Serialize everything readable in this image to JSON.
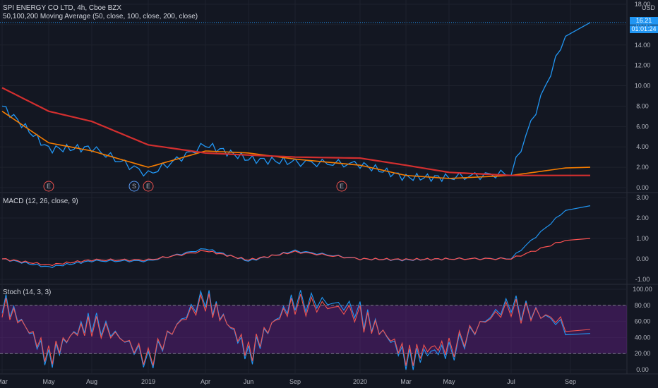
{
  "symbol_title": "SPI ENERGY CO LTD, 4h, Cboe BZX",
  "ma_legend": "50,100,200 Moving Average (50, close, 100, close, 200, close)",
  "macd_legend": "MACD (12, 26, close, 9)",
  "stoch_legend": "Stoch (14, 3, 3)",
  "currency": "USD",
  "last_price": "16.21",
  "countdown": "01:01:24",
  "colors": {
    "background": "#131722",
    "price": "#2196f3",
    "ma_slow": "#d32f2f",
    "ma_mid": "#f57c00",
    "macd_signal": "#ff5252",
    "stoch_k": "#2196f3",
    "stoch_d": "#ef5350",
    "stoch_band": "#7b1fa2",
    "price_tag": "#2196f3"
  },
  "x_axis_labels": [
    "Mar",
    "May",
    "Aug",
    "2019",
    "Apr",
    "Jun",
    "Sep",
    "2020",
    "Mar",
    "May",
    "Jul",
    "Sep"
  ],
  "earnings_markers": [
    "E",
    "S",
    "E",
    "E"
  ],
  "chart_data": [
    {
      "type": "line",
      "panel": "price",
      "y_ticks": [
        "18.00",
        "16.00",
        "14.00",
        "12.00",
        "10.00",
        "8.00",
        "6.00",
        "4.00",
        "2.00",
        "0.00"
      ],
      "ylim": [
        0,
        18
      ],
      "x": [
        "Mar",
        "May",
        "Aug",
        "2019",
        "Apr",
        "Jun",
        "Sep",
        "2020",
        "Mar",
        "May",
        "Jul",
        "Sep"
      ],
      "series": [
        {
          "values": [
            8.0,
            3.8,
            3.9,
            1.3,
            4.2,
            2.8,
            2.5,
            2.3,
            1.0,
            1.0,
            1.4,
            16.21
          ]
        },
        {
          "values": [
            7.5,
            4.4,
            3.6,
            2.0,
            3.6,
            3.4,
            2.8,
            2.2,
            1.2,
            0.9,
            1.2,
            2.0
          ]
        },
        {
          "values": [
            9.8,
            7.5,
            6.5,
            4.2,
            3.4,
            3.2,
            3.0,
            2.9,
            2.2,
            1.5,
            1.2,
            1.2
          ]
        }
      ]
    },
    {
      "type": "line",
      "panel": "macd",
      "y_ticks": [
        "3.00",
        "2.00",
        "1.00",
        "0.00",
        "-1.00"
      ],
      "ylim": [
        -1,
        3
      ],
      "x": [
        "Mar",
        "May",
        "Aug",
        "2019",
        "Apr",
        "Jun",
        "Sep",
        "2020",
        "Mar",
        "May",
        "Jul",
        "Sep"
      ],
      "series": [
        {
          "values": [
            0.0,
            -0.4,
            -0.1,
            -0.1,
            0.5,
            -0.1,
            0.4,
            0.0,
            -0.05,
            0.0,
            0.02,
            2.6
          ]
        },
        {
          "values": [
            0.0,
            -0.3,
            -0.05,
            -0.05,
            0.4,
            -0.05,
            0.35,
            0.0,
            -0.03,
            0.0,
            0.01,
            1.0
          ]
        }
      ]
    },
    {
      "type": "line",
      "panel": "stoch",
      "y_ticks": [
        "100.00",
        "80.00",
        "60.00",
        "40.00",
        "20.00",
        "0.00"
      ],
      "ylim": [
        0,
        100
      ],
      "bands": [
        20,
        80
      ],
      "x": [
        "Mar",
        "May",
        "Aug",
        "2019",
        "Apr",
        "Jun",
        "Sep",
        "2020",
        "Mar",
        "May",
        "Jul",
        "Sep"
      ],
      "series": [
        {
          "values": [
            85,
            10,
            60,
            8,
            90,
            15,
            85,
            70,
            10,
            20,
            80,
            45
          ]
        },
        {
          "values": [
            80,
            15,
            55,
            12,
            85,
            20,
            80,
            65,
            15,
            25,
            75,
            50
          ]
        }
      ]
    }
  ]
}
